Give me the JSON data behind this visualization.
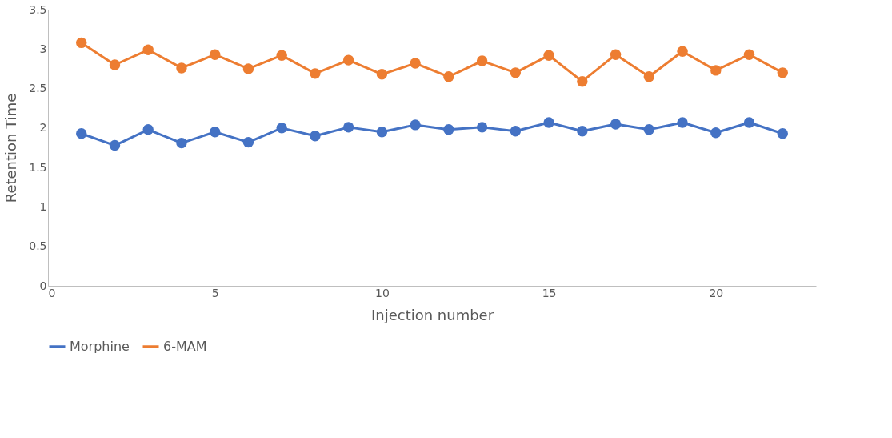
{
  "chart_data": {
    "type": "line",
    "xlabel": "Injection number",
    "ylabel": "Retention Time",
    "x": [
      1,
      2,
      3,
      4,
      5,
      6,
      7,
      8,
      9,
      10,
      11,
      12,
      13,
      14,
      15,
      16,
      17,
      18,
      19,
      20,
      21,
      22
    ],
    "series": [
      {
        "name": "Morphine",
        "color": "#4472c4",
        "values": [
          1.93,
          1.78,
          1.98,
          1.81,
          1.95,
          1.82,
          2.0,
          1.9,
          2.01,
          1.95,
          2.04,
          1.98,
          2.01,
          1.96,
          2.07,
          1.96,
          2.05,
          1.98,
          2.07,
          1.94,
          2.07,
          1.93
        ]
      },
      {
        "name": "6-MAM",
        "color": "#ed7d31",
        "values": [
          3.08,
          2.8,
          2.99,
          2.76,
          2.93,
          2.75,
          2.92,
          2.69,
          2.86,
          2.68,
          2.82,
          2.65,
          2.85,
          2.7,
          2.92,
          2.59,
          2.93,
          2.65,
          2.97,
          2.73,
          2.93,
          2.7
        ]
      }
    ],
    "xlim": [
      0,
      23
    ],
    "xticks": [
      0,
      5,
      10,
      15,
      20
    ],
    "ylim": [
      0,
      3.5
    ],
    "yticks": [
      0,
      0.5,
      1,
      1.5,
      2,
      2.5,
      3,
      3.5
    ],
    "grid": false,
    "legend": "bottom",
    "marker": "circle",
    "line_style": "solid"
  }
}
